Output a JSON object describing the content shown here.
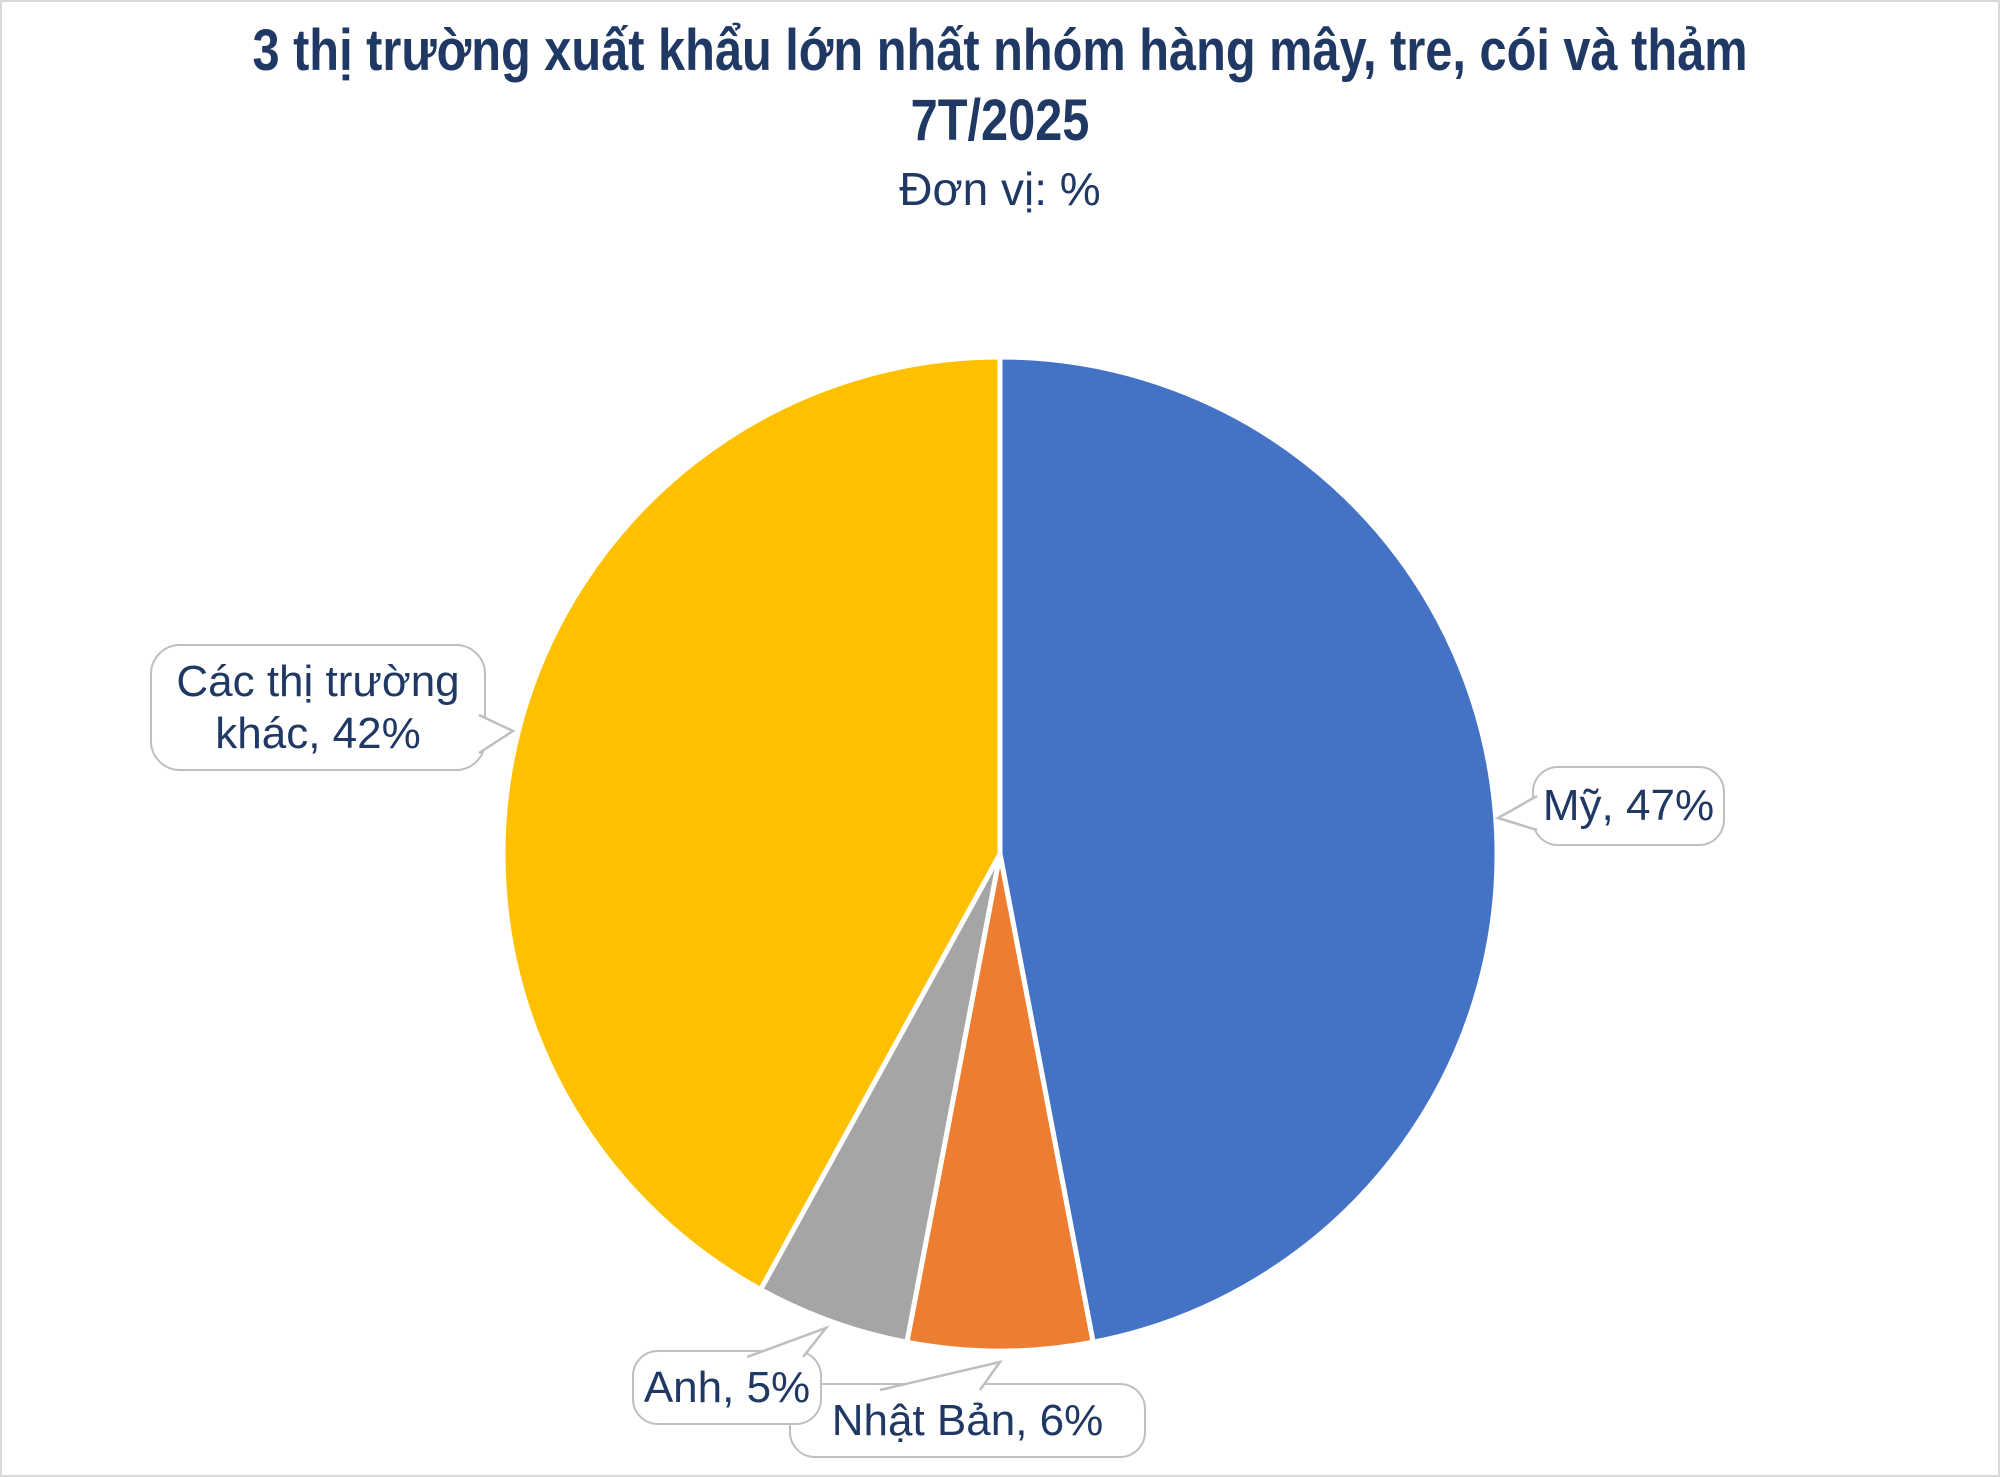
{
  "chart": {
    "title_line1": "3 thị trường xuất khẩu lớn nhất nhóm hàng mây, tre, cói và thảm",
    "title_line2": "7T/2025",
    "subtitle": "Đơn vị: %"
  },
  "chart_data": {
    "type": "pie",
    "title": "3 thị trường xuất khẩu lớn nhất nhóm hàng mây, tre, cói và thảm 7T/2025",
    "subtitle": "Đơn vị: %",
    "unit": "%",
    "start_angle_deg": 0,
    "direction": "clockwise",
    "legend": "none",
    "label_style": "callout-bubbles",
    "slices": [
      {
        "label": "Mỹ",
        "value": 47,
        "color": "#4472C4",
        "callout_label": "Mỹ, 47%"
      },
      {
        "label": "Nhật Bản",
        "value": 6,
        "color": "#ED7D31",
        "callout_label": "Nhật Bản, 6%"
      },
      {
        "label": "Anh",
        "value": 5,
        "color": "#A5A5A5",
        "callout_label": "Anh, 5%"
      },
      {
        "label": "Các thị trường khác",
        "value": 42,
        "color": "#FFC000",
        "callout_label": "Các thị trường khác, 42%"
      }
    ],
    "colors": {
      "text": "#1F3864",
      "callout_border": "#BFBFBF",
      "slice_separator": "#FFFFFF",
      "background": "#FFFFFF"
    }
  }
}
